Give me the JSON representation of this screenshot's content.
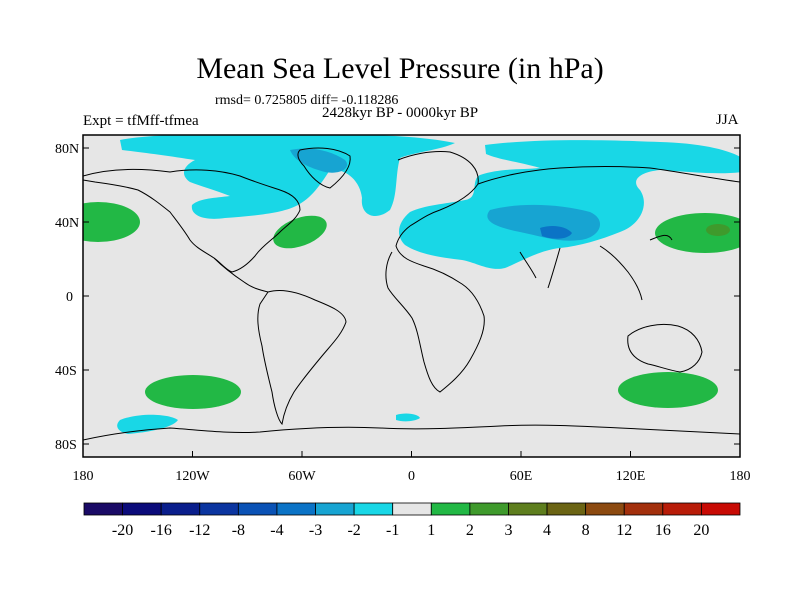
{
  "title": "Mean Sea Level Pressure (in hPa)",
  "stats_line": "rmsd= 0.725805 diff= -0.118286",
  "period": "2428kyr BP - 0000kyr BP",
  "experiment": "Expt = tfMff-tfmea",
  "season": "JJA",
  "lat_labels": [
    "80N",
    "40N",
    "0",
    "40S",
    "80S"
  ],
  "lon_labels": [
    "180",
    "120W",
    "60W",
    "0",
    "60E",
    "120E",
    "180"
  ],
  "colorbar": {
    "levels": [
      "-20",
      "-16",
      "-12",
      "-8",
      "-4",
      "-3",
      "-2",
      "-1",
      "1",
      "2",
      "3",
      "4",
      "8",
      "12",
      "16",
      "20"
    ],
    "colors": [
      "#1a0a66",
      "#0b0b7a",
      "#0a1e8c",
      "#0b35a0",
      "#0a52b5",
      "#0b73c6",
      "#17a4d2",
      "#19d7e6",
      "#e6e6e6",
      "#22b845",
      "#3f9a2c",
      "#5e7e1e",
      "#6b6414",
      "#8c4a10",
      "#a3300c",
      "#b81c08",
      "#c80a04"
    ]
  },
  "colors": {
    "background": "#e6e6e6",
    "neg_light": "#19d7e6",
    "neg_mid": "#17a4d2",
    "neg_dark": "#0b73c6",
    "pos_light": "#22b845",
    "pos_dark": "#3f9a2c",
    "coast": "#000000"
  }
}
